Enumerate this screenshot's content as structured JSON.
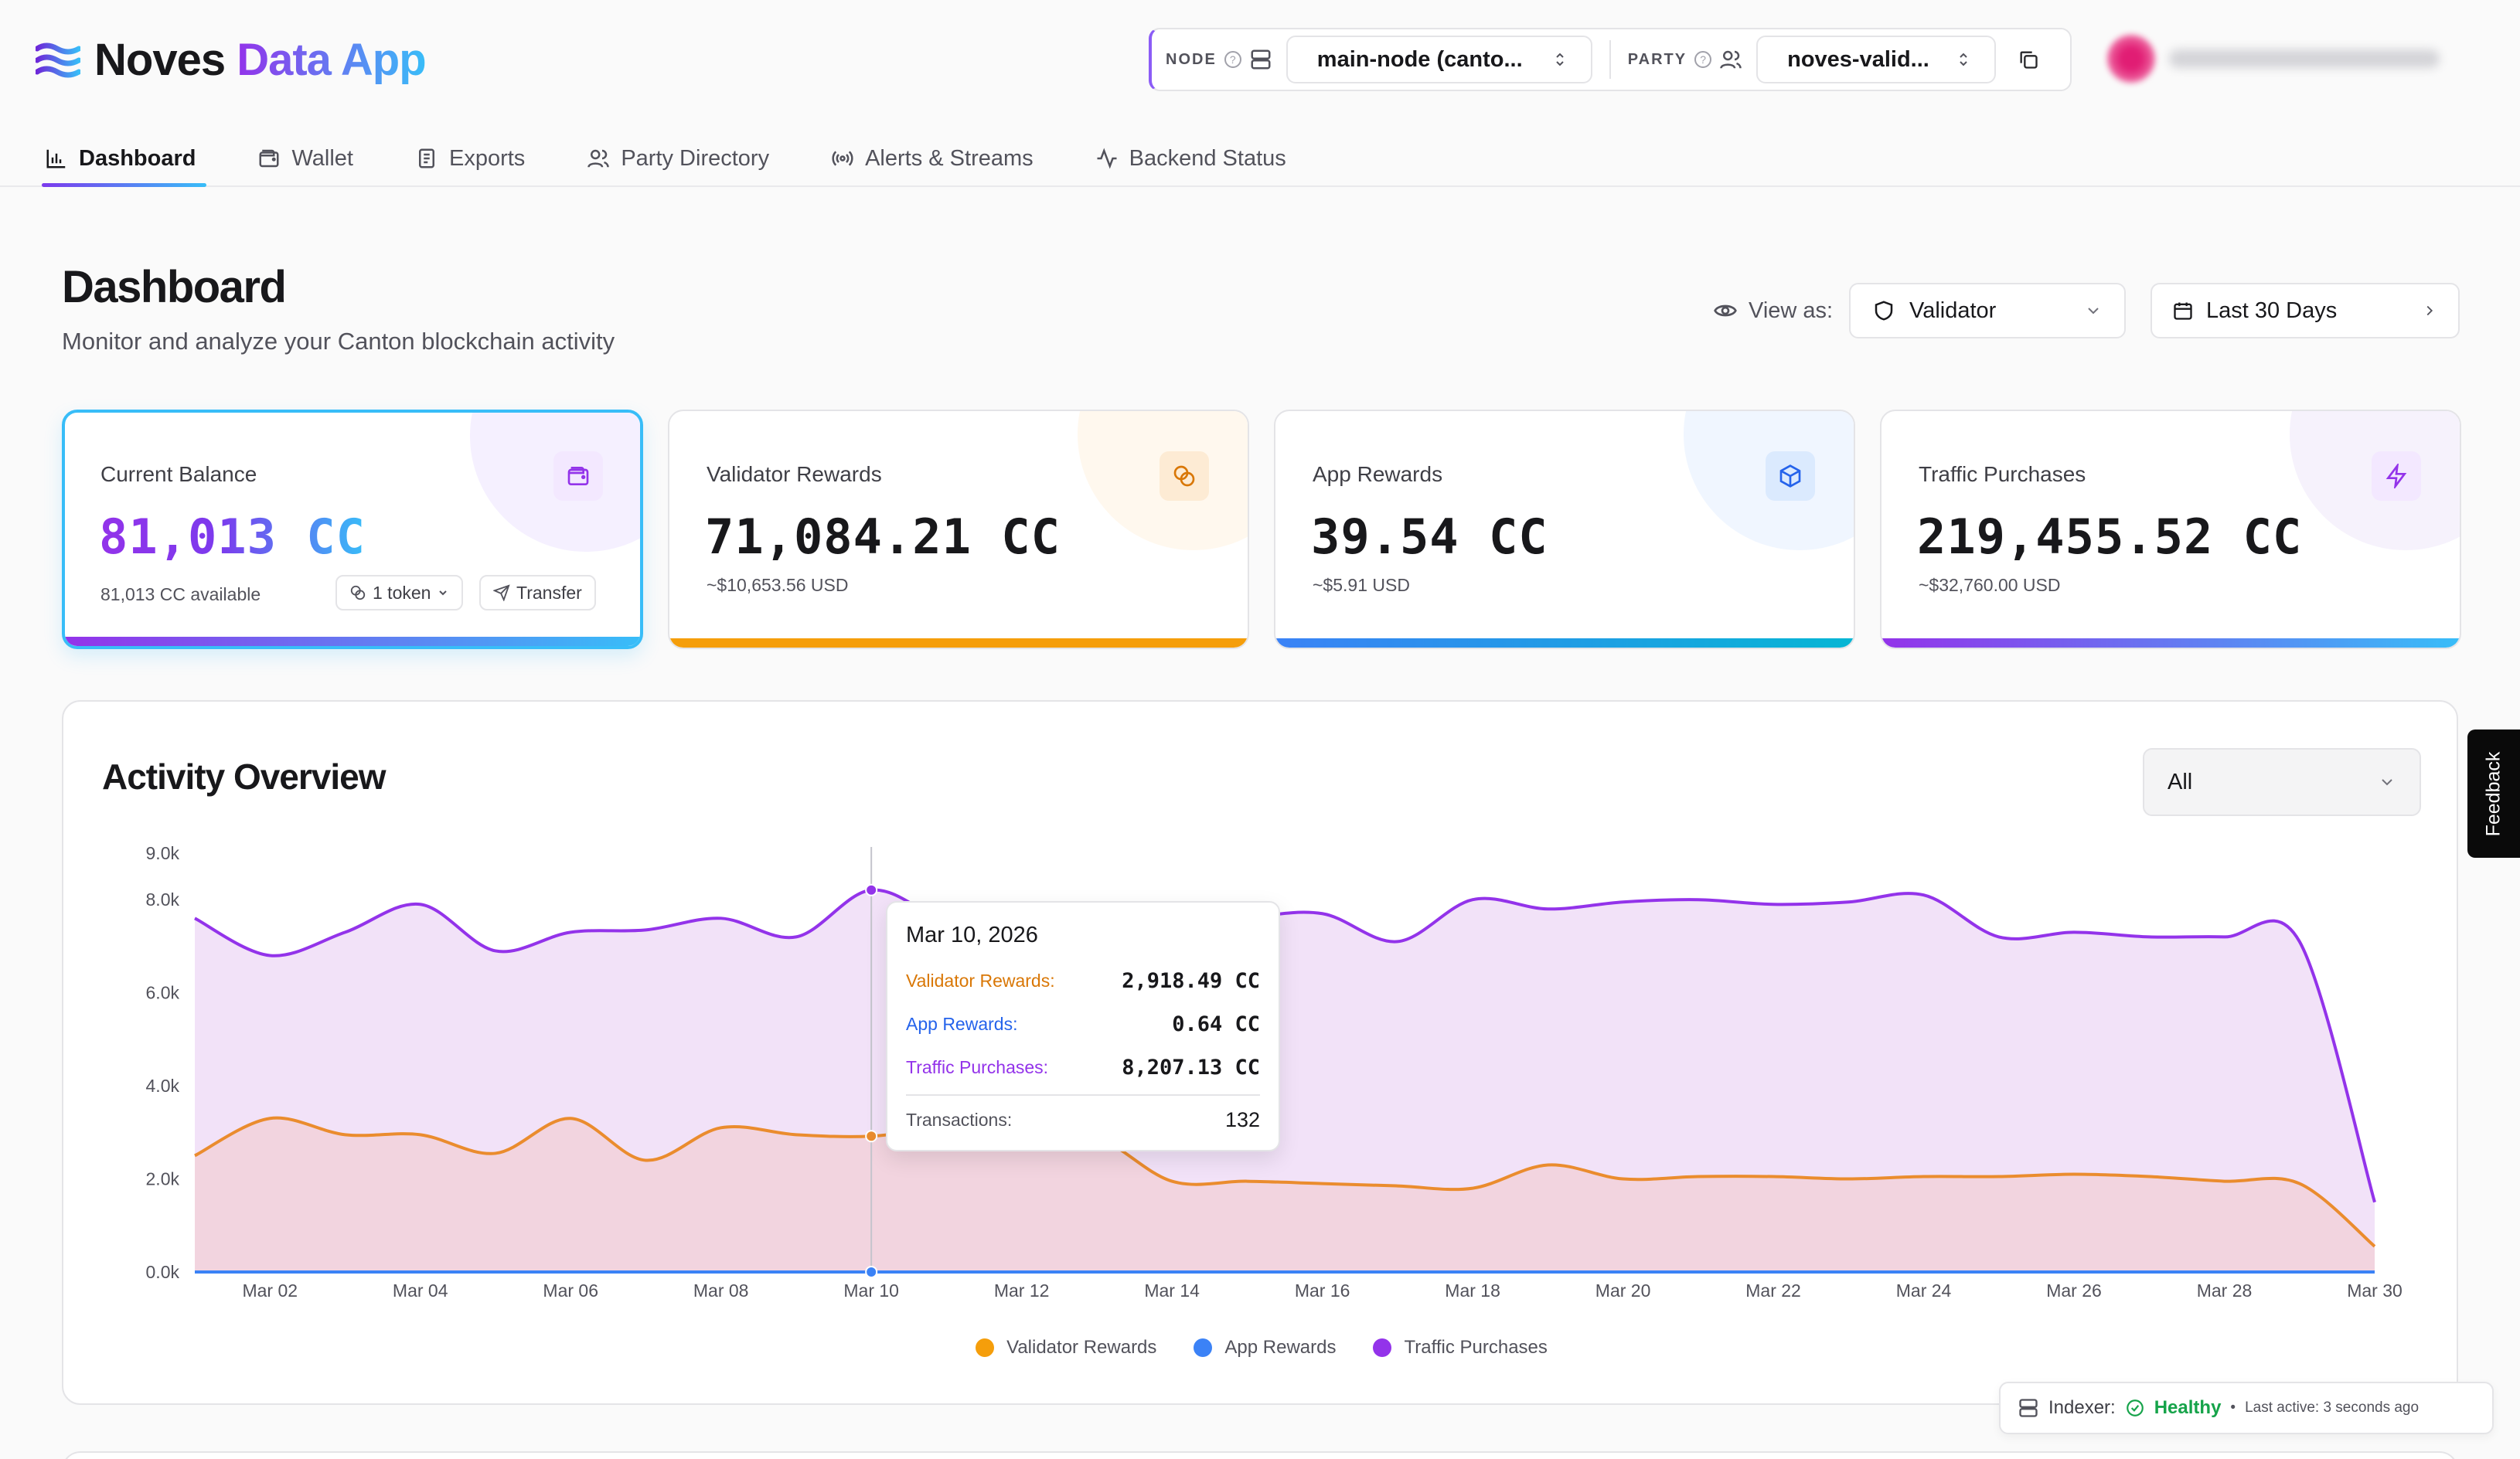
{
  "app": {
    "brand_name": "Noves",
    "brand_suffix": "Data App"
  },
  "context": {
    "node_label": "NODE",
    "node_value": "main-node (canto...",
    "party_label": "PARTY",
    "party_value": "noves-valid...",
    "help_glyph": "?"
  },
  "nav": {
    "items": [
      {
        "label": "Dashboard",
        "icon": "bar-chart-icon"
      },
      {
        "label": "Wallet",
        "icon": "wallet-icon"
      },
      {
        "label": "Exports",
        "icon": "document-icon"
      },
      {
        "label": "Party Directory",
        "icon": "users-icon"
      },
      {
        "label": "Alerts & Streams",
        "icon": "broadcast-icon"
      },
      {
        "label": "Backend Status",
        "icon": "activity-icon"
      }
    ],
    "active_index": 0
  },
  "page": {
    "title": "Dashboard",
    "subtitle": "Monitor and analyze your Canton blockchain activity",
    "view_as_label": "View as:",
    "role_value": "Validator",
    "range_value": "Last 30 Days"
  },
  "cards": [
    {
      "title": "Current Balance",
      "value": "81,013 CC",
      "sub": "81,013 CC available",
      "token_btn": "1 token",
      "transfer_btn": "Transfer",
      "accent": "#9333ea"
    },
    {
      "title": "Validator Rewards",
      "value": "71,084.21 CC",
      "sub": "~$10,653.56 USD",
      "accent": "#f59e0b"
    },
    {
      "title": "App Rewards",
      "value": "39.54 CC",
      "sub": "~$5.91 USD",
      "accent": "#3b82f6"
    },
    {
      "title": "Traffic Purchases",
      "value": "219,455.52 CC",
      "sub": "~$32,760.00 USD",
      "accent": "#9333ea"
    }
  ],
  "activity": {
    "title": "Activity Overview",
    "filter_value": "All",
    "legend": [
      "Validator Rewards",
      "App Rewards",
      "Traffic Purchases"
    ],
    "tooltip": {
      "date": "Mar 10, 2026",
      "rows": [
        {
          "label": "Validator Rewards:",
          "value": "2,918.49 CC",
          "color": "#d97706"
        },
        {
          "label": "App Rewards:",
          "value": "0.64 CC",
          "color": "#2563eb"
        },
        {
          "label": "Traffic Purchases:",
          "value": "8,207.13 CC",
          "color": "#9333ea"
        }
      ],
      "tx_label": "Transactions:",
      "tx_value": "132"
    }
  },
  "chart_data": {
    "type": "area",
    "title": "",
    "xlabel": "",
    "ylabel": "",
    "ylim": [
      0,
      9000
    ],
    "yticks": [
      0,
      2000,
      4000,
      6000,
      8000,
      9000
    ],
    "ytick_labels": [
      "0.0k",
      "2.0k",
      "4.0k",
      "6.0k",
      "8.0k",
      "9.0k"
    ],
    "x": [
      "Mar 01",
      "Mar 02",
      "Mar 03",
      "Mar 04",
      "Mar 05",
      "Mar 06",
      "Mar 07",
      "Mar 08",
      "Mar 09",
      "Mar 10",
      "Mar 11",
      "Mar 12",
      "Mar 13",
      "Mar 14",
      "Mar 15",
      "Mar 16",
      "Mar 17",
      "Mar 18",
      "Mar 19",
      "Mar 20",
      "Mar 21",
      "Mar 22",
      "Mar 23",
      "Mar 24",
      "Mar 25",
      "Mar 26",
      "Mar 27",
      "Mar 28",
      "Mar 29",
      "Mar 30"
    ],
    "xtick_labels": [
      "Mar 02",
      "Mar 04",
      "Mar 06",
      "Mar 08",
      "Mar 10",
      "Mar 12",
      "Mar 14",
      "Mar 16",
      "Mar 18",
      "Mar 20",
      "Mar 22",
      "Mar 24",
      "Mar 26",
      "Mar 28",
      "Mar 30"
    ],
    "series": [
      {
        "name": "Traffic Purchases",
        "color": "#9333ea",
        "fill": "#f1dff7",
        "values": [
          7600,
          6800,
          7300,
          7900,
          6900,
          7300,
          7350,
          7600,
          7200,
          8207,
          7500,
          7000,
          6900,
          7300,
          7600,
          7700,
          7100,
          8000,
          7800,
          7950,
          8000,
          7900,
          7950,
          8100,
          7200,
          7300,
          7200,
          7200,
          7100,
          1500
        ]
      },
      {
        "name": "Validator Rewards",
        "color": "#ea8c2e",
        "fill": "#f2d3db",
        "values": [
          2500,
          3300,
          2950,
          2950,
          2550,
          3300,
          2400,
          3100,
          2950,
          2918,
          3100,
          3050,
          2900,
          1950,
          1950,
          1900,
          1850,
          1800,
          2300,
          2000,
          2050,
          2050,
          2000,
          2050,
          2050,
          2100,
          2050,
          1950,
          1900,
          550
        ]
      },
      {
        "name": "App Rewards",
        "color": "#3b82f6",
        "fill": "none",
        "values": [
          1,
          1,
          1,
          1,
          1,
          1,
          1,
          1,
          1,
          0.64,
          1,
          1,
          1,
          1,
          1,
          1,
          1,
          1,
          1,
          1,
          1,
          1,
          1,
          1,
          1,
          1,
          1,
          1,
          1,
          1
        ]
      }
    ],
    "highlight_x": "Mar 10",
    "grid": false,
    "legend_position": "bottom"
  },
  "feedback_label": "Feedback",
  "indexer": {
    "label": "Indexer:",
    "status": "Healthy",
    "bullet": "•",
    "last_active": "Last active: 3 seconds ago"
  }
}
